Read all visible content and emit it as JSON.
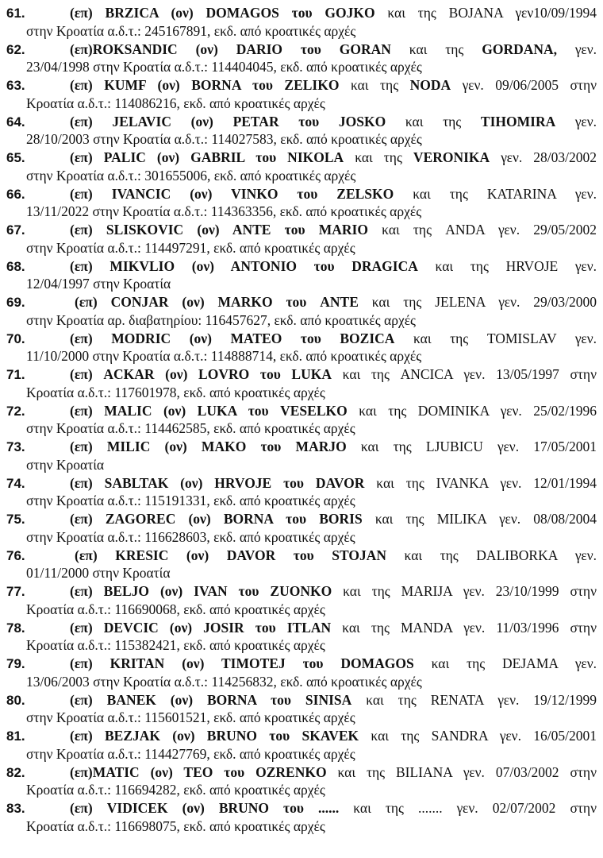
{
  "entries": [
    {
      "num": "61.",
      "l1": [
        {
          "b": true,
          "t": "(επ) BRZICA (ον) DOMAGOS του GOJKO"
        },
        {
          "b": false,
          "t": " και της BOJANA γεν10/09/1994"
        }
      ],
      "l2": "στην Κροατία α.δ.τ.: 245167891, εκδ. από κροατικές αρχές"
    },
    {
      "num": "62.",
      "l1": [
        {
          "b": true,
          "t": "(επ)ROKSANDIC (ον) DARIO του GORAN"
        },
        {
          "b": false,
          "t": " και της "
        },
        {
          "b": true,
          "t": "GORDANA,"
        },
        {
          "b": false,
          "t": " γεν."
        }
      ],
      "l2": "23/04/1998 στην Κροατία α.δ.τ.: 114404045, εκδ. από κροατικές αρχές"
    },
    {
      "num": "63.",
      "l1": [
        {
          "b": true,
          "t": "(επ) KUMF (ον) BORNA του ZELIKO"
        },
        {
          "b": false,
          "t": " και της "
        },
        {
          "b": true,
          "t": "NODA"
        },
        {
          "b": false,
          "t": " γεν. 09/06/2005 στην"
        }
      ],
      "l2": "Κροατία α.δ.τ.: 114086216, εκδ. από κροατικές αρχές"
    },
    {
      "num": "64.",
      "l1": [
        {
          "b": true,
          "t": "(επ) JELAVIC (ον) PETAR του JOSKO"
        },
        {
          "b": false,
          "t": " και της "
        },
        {
          "b": true,
          "t": "TIHOMIRA"
        },
        {
          "b": false,
          "t": " γεν."
        }
      ],
      "l2": "28/10/2003 στην Κροατία α.δ.τ.: 114027583, εκδ. από κροατικές αρχές"
    },
    {
      "num": "65.",
      "l1": [
        {
          "b": true,
          "t": "(επ) PALIC (ον) GABRIL του NIKOLA"
        },
        {
          "b": false,
          "t": " και της "
        },
        {
          "b": true,
          "t": "VERONIKA"
        },
        {
          "b": false,
          "t": " γεν. 28/03/2002"
        }
      ],
      "l2": "στην Κροατία α.δ.τ.: 301655006, εκδ. από κροατικές αρχές"
    },
    {
      "num": "66.",
      "l1": [
        {
          "b": true,
          "t": "(επ) IVANCIC (ον) VINKO του ZELSKO"
        },
        {
          "b": false,
          "t": " και της KATARINA γεν."
        }
      ],
      "l2": "13/11/2022 στην Κροατία α.δ.τ.: 114363356, εκδ. από κροατικές αρχές"
    },
    {
      "num": "67.",
      "l1": [
        {
          "b": true,
          "t": "(επ) SLISKOVIC (ον) ANTE του MARIO"
        },
        {
          "b": false,
          "t": " και της ANDA γεν. 29/05/2002"
        }
      ],
      "l2": "στην Κροατία α.δ.τ.: 114497291, εκδ. από κροατικές αρχές"
    },
    {
      "num": "68.",
      "l1": [
        {
          "b": true,
          "t": "(επ) MIKVLIO (ον) ANTONIO του DRAGICA"
        },
        {
          "b": false,
          "t": " και της HRVOJE γεν."
        }
      ],
      "l2": "12/04/1997 στην Κροατία"
    },
    {
      "num": "69.",
      "l1": [
        {
          "b": true,
          "t": "(επ) CONJAR (ον) MARKO του ANTE"
        },
        {
          "b": false,
          "t": " και της JELENA γεν. 29/03/2000"
        }
      ],
      "l2": "στην Κροατία αρ. διαβατηρίου: 116457627, εκδ. από κροατικές αρχές"
    },
    {
      "num": "70.",
      "l1": [
        {
          "b": true,
          "t": "(επ) MODRIC (ον) MATEO του BOZICA"
        },
        {
          "b": false,
          "t": " και της TOMISLAV γεν."
        }
      ],
      "l2": "11/10/2000 στην Κροατία α.δ.τ.: 114888714, εκδ. από κροατικές αρχές"
    },
    {
      "num": "71.",
      "l1": [
        {
          "b": true,
          "t": "(επ) ACKAR (ον) LOVRO του LUKA"
        },
        {
          "b": false,
          "t": " και της ANCICA γεν. 13/05/1997 στην"
        }
      ],
      "l2": "Κροατία α.δ.τ.: 117601978, εκδ. από κροατικές αρχές"
    },
    {
      "num": "72.",
      "l1": [
        {
          "b": true,
          "t": "(επ) MALIC (ον) LUKA του VESELKO"
        },
        {
          "b": false,
          "t": " και της DOMINIKA γεν. 25/02/1996"
        }
      ],
      "l2": "στην Κροατία α.δ.τ.: 114462585, εκδ. από κροατικές αρχές"
    },
    {
      "num": "73.",
      "l1": [
        {
          "b": true,
          "t": "(επ) MILIC (ον) MAKO του MARJO"
        },
        {
          "b": false,
          "t": " και της LJUBICU γεν. 17/05/2001"
        }
      ],
      "l2": "στην Κροατία"
    },
    {
      "num": "74.",
      "l1": [
        {
          "b": true,
          "t": "(επ) SABLTAK (ον) HRVOJE του DAVOR"
        },
        {
          "b": false,
          "t": " και της IVANKA γεν. 12/01/1994"
        }
      ],
      "l2": "στην Κροατία α.δ.τ.: 115191331, εκδ. από κροατικές αρχές"
    },
    {
      "num": "75.",
      "l1": [
        {
          "b": true,
          "t": "(επ) ZAGOREC (ον) BORNA του BORIS"
        },
        {
          "b": false,
          "t": " και της MILIKA γεν. 08/08/2004"
        }
      ],
      "l2": "στην Κροατία α.δ.τ.: 116628603, εκδ. από κροατικές αρχές"
    },
    {
      "num": "76.",
      "l1": [
        {
          "b": true,
          "t": "(επ) KRESIC (ον) DAVOR του STOJAN"
        },
        {
          "b": false,
          "t": " και της DALIBORKA γεν."
        }
      ],
      "l2": "01/11/2000 στην Κροατία"
    },
    {
      "num": "77.",
      "l1": [
        {
          "b": true,
          "t": "(επ) BELJO (ον) IVAN του ZUONKO"
        },
        {
          "b": false,
          "t": " και της MARIJA γεν. 23/10/1999 στην"
        }
      ],
      "l2": "Κροατία α.δ.τ.: 116690068, εκδ. από κροατικές αρχές"
    },
    {
      "num": "78.",
      "l1": [
        {
          "b": true,
          "t": "(επ) DEVCIC (ον) JOSIR του ITLAN"
        },
        {
          "b": false,
          "t": " και της MANDA γεν. 11/03/1996 στην"
        }
      ],
      "l2": "Κροατία α.δ.τ.: 115382421, εκδ. από κροατικές αρχές"
    },
    {
      "num": "79.",
      "l1": [
        {
          "b": true,
          "t": "(επ) KRITAN (ον) TIMOTEJ του DOMAGOS"
        },
        {
          "b": false,
          "t": " και της DEJAMA γεν."
        }
      ],
      "l2": "13/06/2003 στην Κροατία α.δ.τ.: 114256832, εκδ. από κροατικές αρχές"
    },
    {
      "num": "80.",
      "l1": [
        {
          "b": true,
          "t": "(επ) BANEK (ον) BORNA του SINISA"
        },
        {
          "b": false,
          "t": " και της RENATA γεν. 19/12/1999"
        }
      ],
      "l2": "στην Κροατία α.δ.τ.: 115601521, εκδ. από κροατικές αρχές"
    },
    {
      "num": "81.",
      "l1": [
        {
          "b": true,
          "t": "(επ) BEZJAK (ον) BRUNO του SKAVEK"
        },
        {
          "b": false,
          "t": " και της SANDRA γεν. 16/05/2001"
        }
      ],
      "l2": "στην Κροατία α.δ.τ.: 114427769, εκδ. από κροατικές αρχές"
    },
    {
      "num": "82.",
      "l1": [
        {
          "b": true,
          "t": "(επ)MATIC (ον) TEO του OZRENKO"
        },
        {
          "b": false,
          "t": " και της BILIANA γεν. 07/03/2002 στην"
        }
      ],
      "l2": "Κροατία α.δ.τ.: 116694282, εκδ. από κροατικές αρχές"
    },
    {
      "num": "83.",
      "l1": [
        {
          "b": true,
          "t": "(επ) VIDICEK (ον) BRUNO του ......"
        },
        {
          "b": false,
          "t": " και της ....... γεν. 02/07/2002 στην"
        }
      ],
      "l2": "Κροατία α.δ.τ.: 116698075, εκδ. από κροατικές αρχές"
    }
  ]
}
